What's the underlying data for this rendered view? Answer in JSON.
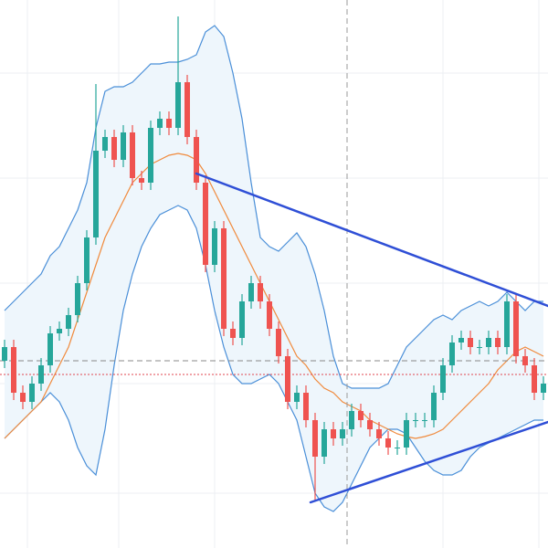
{
  "chart_data": {
    "type": "candlestick",
    "xlim": [
      -0.5,
      59.5
    ],
    "ylim": [
      0,
      600
    ],
    "up_color": "#26a69a",
    "down_color": "#ef5350",
    "grid": true,
    "gridlines_x": [
      2.5,
      12.5,
      23,
      48,
      58.5
    ],
    "gridlines_y": [
      520,
      405,
      290,
      180,
      60
    ],
    "open": [
      205,
      220,
      170,
      160,
      180,
      200,
      235,
      240,
      255,
      290,
      340,
      435,
      450,
      425,
      455,
      405,
      400,
      460,
      470,
      460,
      510,
      450,
      400,
      310,
      350,
      240,
      230,
      270,
      290,
      270,
      240,
      210,
      160,
      170,
      140,
      100,
      130,
      120,
      130,
      150,
      140,
      130,
      120,
      110,
      110,
      140,
      140,
      140,
      170,
      200,
      225,
      230,
      220,
      220,
      230,
      220,
      270,
      210,
      200,
      170
    ],
    "high": [
      228,
      228,
      178,
      188,
      208,
      243,
      248,
      263,
      298,
      348,
      508,
      458,
      458,
      463,
      463,
      413,
      468,
      478,
      478,
      582,
      518,
      458,
      408,
      358,
      358,
      248,
      278,
      298,
      298,
      278,
      248,
      218,
      178,
      178,
      148,
      138,
      138,
      138,
      158,
      158,
      148,
      138,
      128,
      118,
      148,
      148,
      148,
      178,
      208,
      233,
      238,
      238,
      228,
      238,
      238,
      278,
      278,
      218,
      208,
      188
    ],
    "low": [
      197,
      162,
      152,
      152,
      172,
      192,
      227,
      232,
      247,
      282,
      332,
      427,
      417,
      417,
      397,
      392,
      392,
      452,
      452,
      452,
      442,
      392,
      302,
      302,
      232,
      222,
      222,
      262,
      262,
      232,
      202,
      152,
      152,
      132,
      52,
      92,
      112,
      112,
      122,
      132,
      122,
      112,
      102,
      102,
      102,
      132,
      132,
      132,
      162,
      192,
      217,
      212,
      212,
      212,
      212,
      212,
      202,
      192,
      162,
      162
    ],
    "close": [
      220,
      170,
      160,
      180,
      200,
      235,
      240,
      255,
      290,
      340,
      435,
      450,
      425,
      455,
      405,
      400,
      460,
      470,
      460,
      510,
      450,
      400,
      310,
      350,
      240,
      230,
      270,
      290,
      270,
      240,
      210,
      160,
      170,
      140,
      100,
      130,
      120,
      130,
      150,
      140,
      130,
      120,
      110,
      110,
      140,
      140,
      140,
      170,
      200,
      225,
      230,
      220,
      220,
      230,
      220,
      270,
      210,
      200,
      170,
      180
    ],
    "bands": {
      "color": "#4a8fd8",
      "fill": "#eef6fc",
      "middle_color": "#f08a3c",
      "upper": [
        260,
        270,
        280,
        290,
        300,
        320,
        330,
        350,
        370,
        400,
        460,
        500,
        505,
        505,
        510,
        520,
        530,
        530,
        532,
        532,
        535,
        540,
        565,
        572,
        560,
        520,
        470,
        400,
        340,
        330,
        325,
        335,
        345,
        330,
        300,
        260,
        210,
        180,
        175,
        175,
        175,
        175,
        180,
        200,
        220,
        230,
        240,
        250,
        255,
        250,
        260,
        265,
        270,
        265,
        270,
        280,
        270,
        260,
        270,
        270
      ],
      "middle": [
        120,
        130,
        140,
        150,
        160,
        180,
        200,
        220,
        250,
        280,
        310,
        340,
        360,
        380,
        400,
        410,
        420,
        425,
        430,
        432,
        430,
        425,
        410,
        390,
        370,
        350,
        330,
        310,
        290,
        270,
        250,
        230,
        210,
        200,
        185,
        175,
        170,
        160,
        155,
        150,
        140,
        135,
        130,
        125,
        122,
        120,
        122,
        125,
        130,
        140,
        150,
        160,
        170,
        180,
        195,
        205,
        215,
        220,
        215,
        210
      ],
      "lower": [
        120,
        130,
        140,
        150,
        160,
        170,
        160,
        140,
        110,
        90,
        80,
        130,
        200,
        260,
        300,
        330,
        350,
        365,
        370,
        375,
        370,
        350,
        310,
        260,
        220,
        190,
        180,
        180,
        185,
        190,
        180,
        160,
        140,
        100,
        60,
        45,
        40,
        50,
        70,
        90,
        110,
        120,
        130,
        130,
        125,
        110,
        95,
        85,
        80,
        80,
        85,
        100,
        110,
        115,
        120,
        125,
        130,
        135,
        140,
        140
      ]
    },
    "trendlines": [
      {
        "color": "#2f4fd6",
        "x": [
          21,
          59.5
        ],
        "y": [
          410,
          265
        ]
      },
      {
        "color": "#2f4fd6",
        "x": [
          33.5,
          59.5
        ],
        "y": [
          50,
          138
        ]
      }
    ],
    "hlines": [
      {
        "value": 205,
        "color": "#888888",
        "style": "dashed"
      },
      {
        "value": 190,
        "color": "#e0454f",
        "style": "dotted"
      }
    ],
    "crosshair_x": 37.5
  }
}
